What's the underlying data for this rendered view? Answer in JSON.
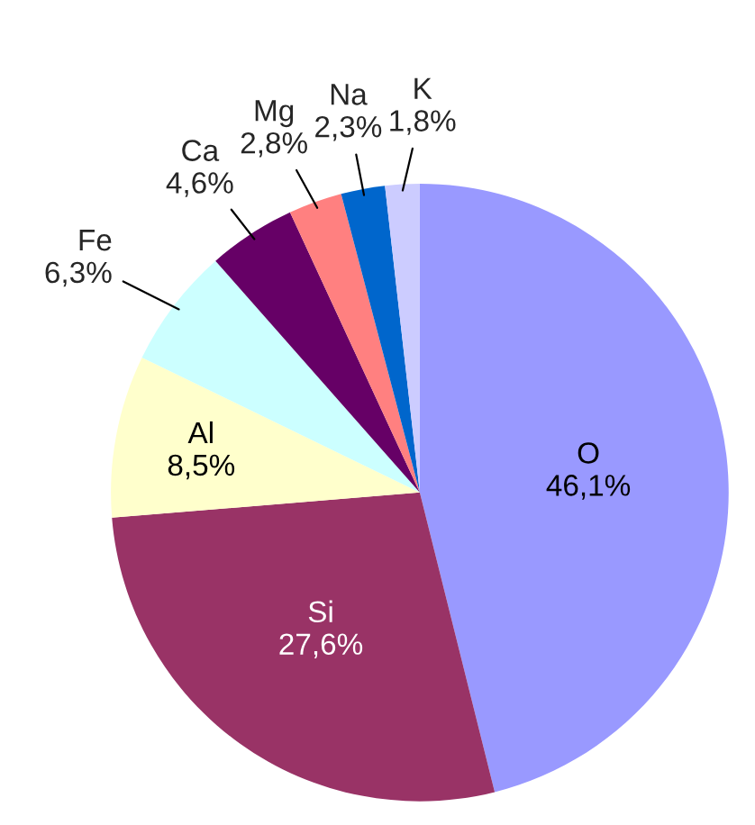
{
  "chart_data": {
    "type": "pie",
    "categories": [
      "O",
      "Si",
      "Al",
      "Fe",
      "Ca",
      "Mg",
      "Na",
      "K"
    ],
    "values": [
      46.1,
      27.6,
      8.5,
      6.3,
      4.6,
      2.8,
      2.3,
      1.8
    ],
    "value_labels": [
      "46,1%",
      "27,6%",
      "8,5%",
      "6,3%",
      "4,6%",
      "2,8%",
      "2,3%",
      "1,8%"
    ],
    "colors": [
      "#9999ff",
      "#993366",
      "#ffffcc",
      "#ccffff",
      "#660066",
      "#ff8080",
      "#0066cc",
      "#ccccff"
    ]
  }
}
